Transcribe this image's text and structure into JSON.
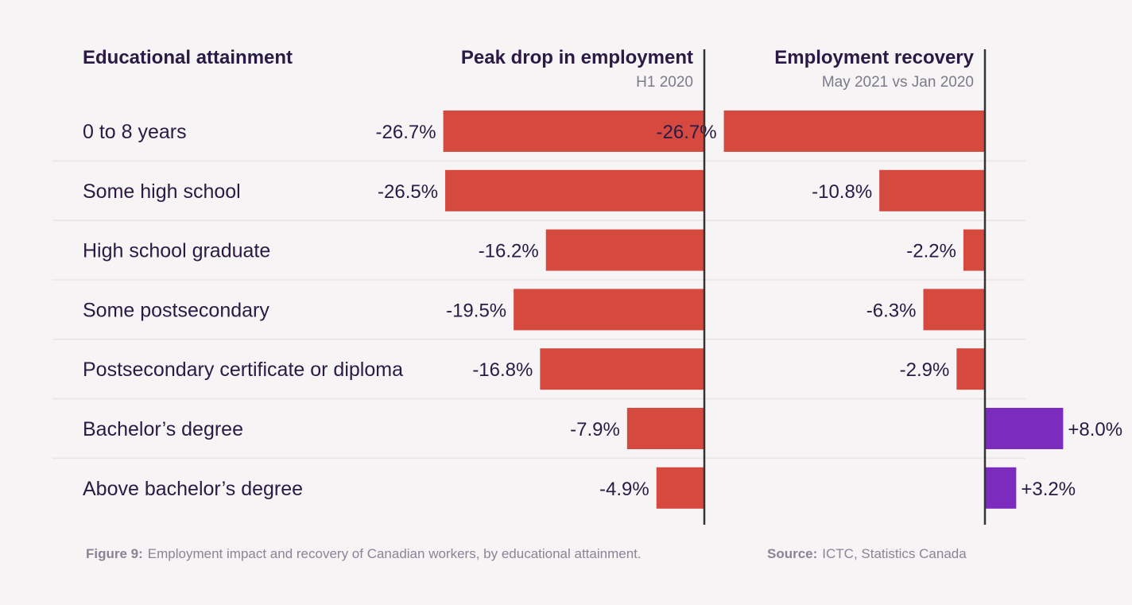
{
  "colors": {
    "negative": "#d5493e",
    "positive": "#7b2cbf"
  },
  "headers": {
    "category": "Educational attainment",
    "left_title": "Peak drop in employment",
    "left_sub": "H1 2020",
    "right_title": "Employment recovery",
    "right_sub": "May 2021 vs Jan 2020"
  },
  "caption": {
    "figure_label": "Figure 9:",
    "figure_text": "Employment impact and recovery of Canadian workers, by educational attainment.",
    "source_label": "Source:",
    "source_text": "ICTC, Statistics Canada"
  },
  "chart_data": {
    "type": "bar",
    "orientation": "horizontal",
    "categories": [
      "0 to 8 years",
      "Some high school",
      "High school graduate",
      "Some postsecondary",
      "Postsecondary certificate or diploma",
      "Bachelor’s degree",
      "Above bachelor’s degree"
    ],
    "series": [
      {
        "name": "Peak drop in employment",
        "subtitle": "H1 2020",
        "values": [
          -26.7,
          -26.5,
          -16.2,
          -19.5,
          -16.8,
          -7.9,
          -4.9
        ],
        "labels": [
          "-26.7%",
          "-26.5%",
          "-16.2%",
          "-19.5%",
          "-16.8%",
          "-7.9%",
          "-4.9%"
        ]
      },
      {
        "name": "Employment recovery",
        "subtitle": "May 2021 vs Jan 2020",
        "values": [
          -26.7,
          -10.8,
          -2.2,
          -6.3,
          -2.9,
          8.0,
          3.2
        ],
        "labels": [
          "-26.7%",
          "-10.8%",
          "-2.2%",
          "-6.3%",
          "-2.9%",
          "+8.0%",
          "+3.2%"
        ]
      }
    ]
  }
}
